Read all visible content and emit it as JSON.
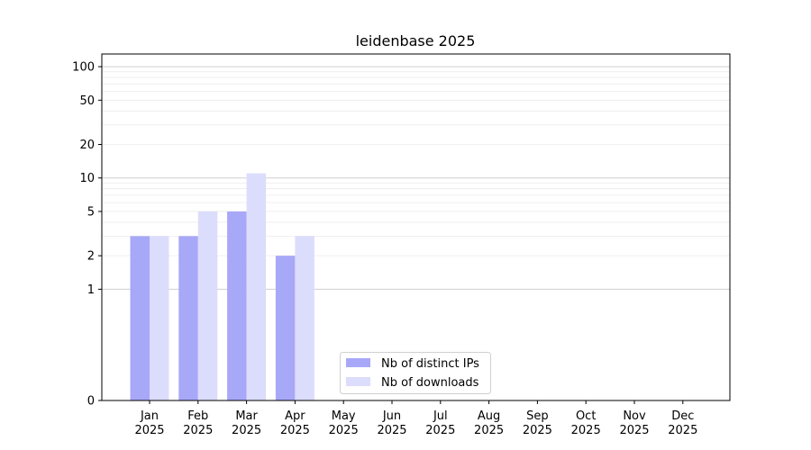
{
  "chart_data": {
    "type": "bar",
    "title": "leidenbase 2025",
    "xlabel": "",
    "ylabel": "",
    "yscale": "symlog",
    "ylim": [
      0,
      130
    ],
    "yticks": [
      0,
      1,
      2,
      5,
      10,
      20,
      50,
      100
    ],
    "grid": true,
    "legend_position": "bottom-center",
    "categories": [
      [
        "Jan",
        "2025"
      ],
      [
        "Feb",
        "2025"
      ],
      [
        "Mar",
        "2025"
      ],
      [
        "Apr",
        "2025"
      ],
      [
        "May",
        "2025"
      ],
      [
        "Jun",
        "2025"
      ],
      [
        "Jul",
        "2025"
      ],
      [
        "Aug",
        "2025"
      ],
      [
        "Sep",
        "2025"
      ],
      [
        "Oct",
        "2025"
      ],
      [
        "Nov",
        "2025"
      ],
      [
        "Dec",
        "2025"
      ]
    ],
    "series": [
      {
        "name": "Nb of distinct IPs",
        "color": "#a8a8f8",
        "values": [
          3,
          3,
          5,
          2,
          0,
          0,
          0,
          0,
          0,
          0,
          0,
          0
        ]
      },
      {
        "name": "Nb of downloads",
        "color": "#dcdcfc",
        "values": [
          3,
          5,
          11,
          3,
          0,
          0,
          0,
          0,
          0,
          0,
          0,
          0
        ]
      }
    ]
  }
}
